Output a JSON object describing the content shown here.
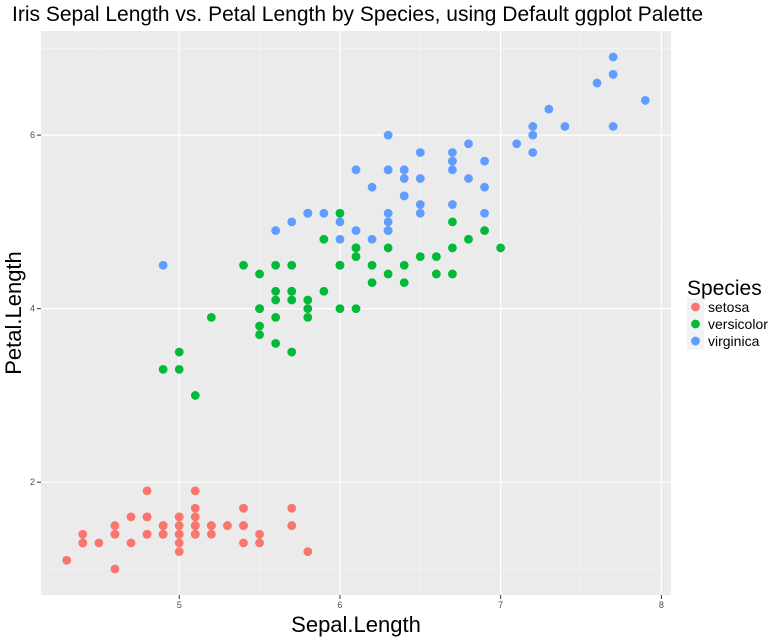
{
  "chart_data": {
    "type": "scatter",
    "title": "Iris Sepal Length vs. Petal Length by Species, using Default ggplot Palette",
    "xlabel": "Sepal.Length",
    "ylabel": "Petal.Length",
    "xlim": [
      4.14,
      8.06
    ],
    "ylim": [
      0.7,
      7.2
    ],
    "x_ticks": [
      5,
      6,
      7,
      8
    ],
    "y_ticks": [
      2,
      4,
      6
    ],
    "x_tick_labels": [
      "5",
      "6",
      "7",
      "8"
    ],
    "y_tick_labels": [
      "2",
      "4",
      "6"
    ],
    "grid": true,
    "legend": {
      "title": "Species",
      "position": "right"
    },
    "background": "#EBEBEB",
    "series": [
      {
        "name": "setosa",
        "color": "#F8766D",
        "points": [
          [
            5.1,
            1.4
          ],
          [
            4.9,
            1.4
          ],
          [
            4.7,
            1.3
          ],
          [
            4.6,
            1.5
          ],
          [
            5.0,
            1.4
          ],
          [
            5.4,
            1.7
          ],
          [
            4.6,
            1.4
          ],
          [
            5.0,
            1.5
          ],
          [
            4.4,
            1.4
          ],
          [
            4.9,
            1.5
          ],
          [
            5.4,
            1.5
          ],
          [
            4.8,
            1.6
          ],
          [
            4.8,
            1.4
          ],
          [
            4.3,
            1.1
          ],
          [
            5.8,
            1.2
          ],
          [
            5.7,
            1.5
          ],
          [
            5.4,
            1.3
          ],
          [
            5.1,
            1.4
          ],
          [
            5.7,
            1.7
          ],
          [
            5.1,
            1.5
          ],
          [
            5.4,
            1.7
          ],
          [
            5.1,
            1.5
          ],
          [
            4.6,
            1.0
          ],
          [
            5.1,
            1.7
          ],
          [
            4.8,
            1.9
          ],
          [
            5.0,
            1.6
          ],
          [
            5.0,
            1.6
          ],
          [
            5.2,
            1.5
          ],
          [
            5.2,
            1.4
          ],
          [
            4.7,
            1.6
          ],
          [
            4.8,
            1.6
          ],
          [
            5.4,
            1.5
          ],
          [
            5.2,
            1.5
          ],
          [
            5.5,
            1.4
          ],
          [
            4.9,
            1.5
          ],
          [
            5.0,
            1.2
          ],
          [
            5.5,
            1.3
          ],
          [
            4.9,
            1.4
          ],
          [
            4.4,
            1.3
          ],
          [
            5.1,
            1.5
          ],
          [
            5.0,
            1.3
          ],
          [
            4.5,
            1.3
          ],
          [
            4.4,
            1.3
          ],
          [
            5.0,
            1.6
          ],
          [
            5.1,
            1.9
          ],
          [
            4.8,
            1.4
          ],
          [
            5.1,
            1.6
          ],
          [
            4.6,
            1.4
          ],
          [
            5.3,
            1.5
          ],
          [
            5.0,
            1.4
          ]
        ]
      },
      {
        "name": "versicolor",
        "color": "#00BA38",
        "points": [
          [
            7.0,
            4.7
          ],
          [
            6.4,
            4.5
          ],
          [
            6.9,
            4.9
          ],
          [
            5.5,
            4.0
          ],
          [
            6.5,
            4.6
          ],
          [
            5.7,
            4.5
          ],
          [
            6.3,
            4.7
          ],
          [
            4.9,
            3.3
          ],
          [
            6.6,
            4.6
          ],
          [
            5.2,
            3.9
          ],
          [
            5.0,
            3.5
          ],
          [
            5.9,
            4.2
          ],
          [
            6.0,
            4.0
          ],
          [
            6.1,
            4.7
          ],
          [
            5.6,
            3.6
          ],
          [
            6.7,
            4.4
          ],
          [
            5.6,
            4.5
          ],
          [
            5.8,
            4.1
          ],
          [
            6.2,
            4.5
          ],
          [
            5.6,
            3.9
          ],
          [
            5.9,
            4.8
          ],
          [
            6.1,
            4.0
          ],
          [
            6.3,
            4.9
          ],
          [
            6.1,
            4.7
          ],
          [
            6.4,
            4.3
          ],
          [
            6.6,
            4.4
          ],
          [
            6.8,
            4.8
          ],
          [
            6.7,
            5.0
          ],
          [
            6.0,
            4.5
          ],
          [
            5.7,
            3.5
          ],
          [
            5.5,
            3.8
          ],
          [
            5.5,
            3.7
          ],
          [
            5.8,
            3.9
          ],
          [
            6.0,
            5.1
          ],
          [
            5.4,
            4.5
          ],
          [
            6.0,
            4.5
          ],
          [
            6.7,
            4.7
          ],
          [
            6.3,
            4.4
          ],
          [
            5.6,
            4.1
          ],
          [
            5.5,
            4.0
          ],
          [
            5.5,
            4.4
          ],
          [
            6.1,
            4.6
          ],
          [
            5.8,
            4.0
          ],
          [
            5.0,
            3.3
          ],
          [
            5.6,
            4.2
          ],
          [
            5.7,
            4.2
          ],
          [
            5.7,
            4.2
          ],
          [
            6.2,
            4.3
          ],
          [
            5.1,
            3.0
          ],
          [
            5.7,
            4.1
          ]
        ]
      },
      {
        "name": "virginica",
        "color": "#619CFF",
        "points": [
          [
            6.3,
            6.0
          ],
          [
            5.8,
            5.1
          ],
          [
            7.1,
            5.9
          ],
          [
            6.3,
            5.6
          ],
          [
            6.5,
            5.8
          ],
          [
            7.6,
            6.6
          ],
          [
            4.9,
            4.5
          ],
          [
            7.3,
            6.3
          ],
          [
            6.7,
            5.8
          ],
          [
            7.2,
            6.1
          ],
          [
            6.5,
            5.1
          ],
          [
            6.4,
            5.3
          ],
          [
            6.8,
            5.5
          ],
          [
            5.7,
            5.0
          ],
          [
            5.8,
            5.1
          ],
          [
            6.4,
            5.3
          ],
          [
            6.5,
            5.5
          ],
          [
            7.7,
            6.7
          ],
          [
            7.7,
            6.9
          ],
          [
            6.0,
            5.0
          ],
          [
            6.9,
            5.7
          ],
          [
            5.6,
            4.9
          ],
          [
            7.7,
            6.7
          ],
          [
            6.3,
            4.9
          ],
          [
            6.7,
            5.7
          ],
          [
            7.2,
            6.0
          ],
          [
            6.2,
            4.8
          ],
          [
            6.1,
            4.9
          ],
          [
            6.4,
            5.6
          ],
          [
            7.2,
            5.8
          ],
          [
            7.4,
            6.1
          ],
          [
            7.9,
            6.4
          ],
          [
            6.4,
            5.6
          ],
          [
            6.3,
            5.1
          ],
          [
            6.1,
            5.6
          ],
          [
            7.7,
            6.1
          ],
          [
            6.3,
            5.6
          ],
          [
            6.4,
            5.5
          ],
          [
            6.0,
            4.8
          ],
          [
            6.9,
            5.4
          ],
          [
            6.7,
            5.6
          ],
          [
            6.9,
            5.1
          ],
          [
            5.8,
            5.1
          ],
          [
            6.8,
            5.9
          ],
          [
            6.7,
            5.7
          ],
          [
            6.7,
            5.2
          ],
          [
            6.3,
            5.0
          ],
          [
            6.5,
            5.2
          ],
          [
            6.2,
            5.4
          ],
          [
            5.9,
            5.1
          ]
        ]
      }
    ]
  }
}
